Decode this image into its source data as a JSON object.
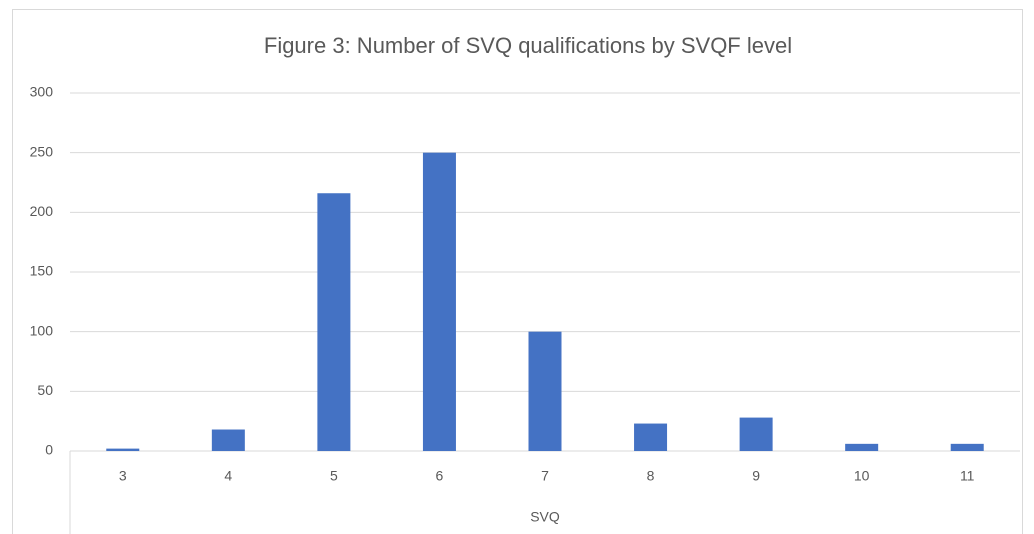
{
  "chart_data": {
    "type": "bar",
    "title": "Figure 3: Number of SVQ qualifications by SVQF level",
    "x_label": "SVQ",
    "categories": [
      "3",
      "4",
      "5",
      "6",
      "7",
      "8",
      "9",
      "10",
      "11"
    ],
    "values": [
      2,
      18,
      216,
      250,
      100,
      23,
      28,
      6,
      6
    ],
    "color": "#4472c4",
    "ylim": [
      0,
      300
    ],
    "yticks": [
      0,
      50,
      100,
      150,
      200,
      250,
      300
    ],
    "grid": true
  }
}
